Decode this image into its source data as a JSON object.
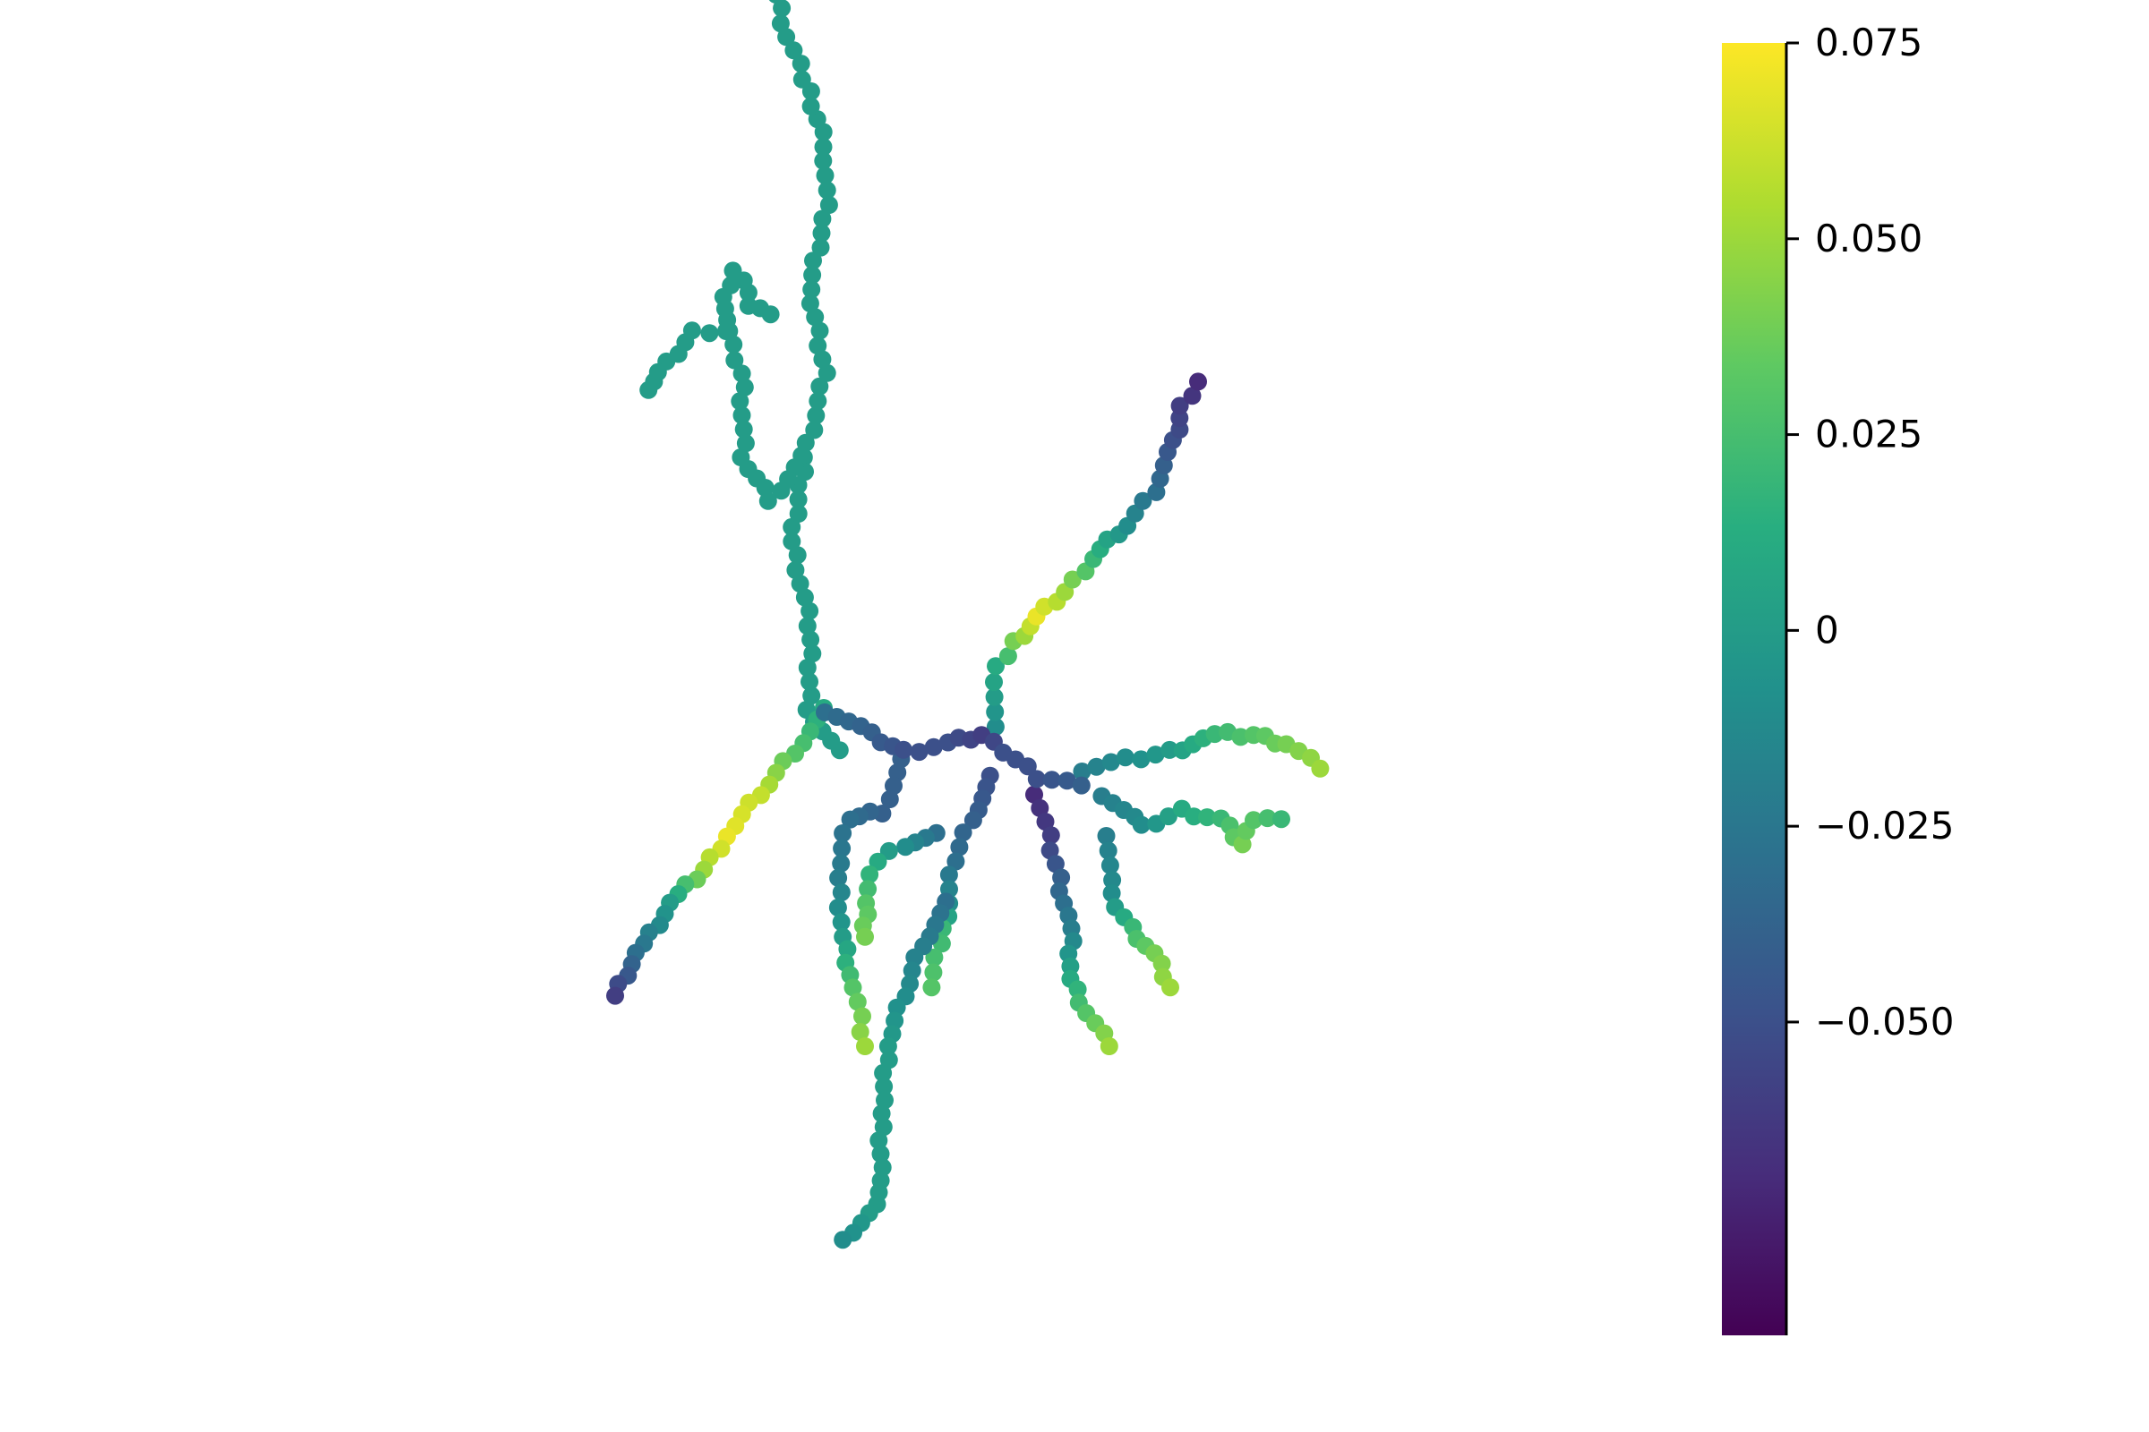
{
  "chart_data": {
    "type": "scatter",
    "description_of_marks": "points along branches colored by value",
    "colormap": "viridis",
    "colorbar": {
      "range": [
        -0.09,
        0.075
      ],
      "ticks": [
        0.075,
        0.05,
        0.025,
        0,
        -0.025,
        -0.05
      ],
      "tick_labels": [
        "0.075",
        "0.050",
        "0.025",
        "0",
        "−0.025",
        "−0.050"
      ]
    },
    "axes_visible": false,
    "grid": false,
    "branches": [
      {
        "name": "upper-left",
        "polyline": [
          [
            0.0,
            0.0
          ],
          [
            -0.05,
            0.05
          ],
          [
            -0.05,
            0.15
          ],
          [
            -0.08,
            0.25
          ],
          [
            -0.06,
            0.35
          ],
          [
            -0.02,
            0.45
          ],
          [
            -0.05,
            0.55
          ],
          [
            -0.02,
            0.65
          ],
          [
            -0.02,
            0.72
          ],
          [
            -0.06,
            0.8
          ],
          [
            -0.09,
            0.85
          ],
          [
            -0.11,
            0.9
          ]
        ],
        "values": [
          0.0,
          0.0,
          0.0,
          0.0,
          0.0,
          0.0,
          0.0,
          0.0,
          0.0,
          0.0,
          0.0,
          0.0
        ]
      },
      {
        "name": "upper-left-sub",
        "polyline": [
          [
            -0.06,
            0.35
          ],
          [
            -0.12,
            0.3
          ],
          [
            -0.17,
            0.35
          ],
          [
            -0.17,
            0.45
          ],
          [
            -0.2,
            0.5
          ],
          [
            -0.26,
            0.5
          ],
          [
            -0.32,
            0.45
          ],
          [
            -0.34,
            0.43
          ]
        ],
        "values": [
          0.0,
          0.0,
          0.0,
          0.0,
          0.0,
          0.0,
          0.0,
          0.0
        ]
      },
      {
        "name": "upper-left-hook",
        "polyline": [
          [
            -0.2,
            0.5
          ],
          [
            -0.2,
            0.54
          ],
          [
            -0.19,
            0.57
          ],
          [
            -0.17,
            0.56
          ],
          [
            -0.16,
            0.53
          ],
          [
            -0.12,
            0.52
          ]
        ],
        "values": [
          0.0,
          0.0,
          0.0,
          0.0,
          0.0,
          0.0
        ]
      },
      {
        "name": "left-lower",
        "polyline": [
          [
            -0.02,
            0.05
          ],
          [
            -0.08,
            0.0
          ],
          [
            -0.14,
            -0.05
          ],
          [
            -0.2,
            -0.1
          ],
          [
            -0.24,
            -0.14
          ],
          [
            -0.3,
            -0.18
          ],
          [
            -0.36,
            -0.24
          ],
          [
            -0.4,
            -0.29
          ]
        ],
        "values": [
          0.01,
          0.03,
          0.06,
          0.07,
          0.05,
          0.0,
          -0.03,
          -0.06
        ]
      },
      {
        "name": "upper-right",
        "polyline": [
          [
            0.28,
            0.03
          ],
          [
            0.29,
            0.1
          ],
          [
            0.32,
            0.13
          ],
          [
            0.36,
            0.16
          ],
          [
            0.41,
            0.19
          ],
          [
            0.46,
            0.23
          ],
          [
            0.52,
            0.27
          ],
          [
            0.57,
            0.31
          ],
          [
            0.61,
            0.37
          ],
          [
            0.62,
            0.41
          ],
          [
            0.65,
            0.44
          ]
        ],
        "values": [
          -0.01,
          0.01,
          0.04,
          0.07,
          0.05,
          0.02,
          -0.01,
          -0.03,
          -0.05,
          -0.06,
          -0.07
        ]
      },
      {
        "name": "right-upper",
        "polyline": [
          [
            0.44,
            -0.02
          ],
          [
            0.52,
            -0.01
          ],
          [
            0.6,
            0.0
          ],
          [
            0.68,
            0.02
          ],
          [
            0.75,
            0.02
          ],
          [
            0.81,
            0.01
          ],
          [
            0.87,
            -0.02
          ]
        ],
        "values": [
          -0.02,
          -0.01,
          0.0,
          0.02,
          0.03,
          0.04,
          0.05
        ]
      },
      {
        "name": "right-mid",
        "polyline": [
          [
            0.48,
            -0.05
          ],
          [
            0.55,
            -0.09
          ],
          [
            0.62,
            -0.07
          ],
          [
            0.69,
            -0.08
          ],
          [
            0.73,
            -0.11
          ],
          [
            0.75,
            -0.08
          ],
          [
            0.8,
            -0.08
          ]
        ],
        "values": [
          -0.02,
          -0.01,
          0.01,
          0.02,
          0.04,
          0.03,
          0.02
        ]
      },
      {
        "name": "right-lower",
        "polyline": [
          [
            0.49,
            -0.1
          ],
          [
            0.49,
            -0.17
          ],
          [
            0.53,
            -0.21
          ],
          [
            0.57,
            -0.24
          ],
          [
            0.6,
            -0.28
          ]
        ],
        "values": [
          -0.02,
          -0.01,
          0.02,
          0.04,
          0.05
        ]
      },
      {
        "name": "lower-right",
        "polyline": [
          [
            0.36,
            -0.05
          ],
          [
            0.38,
            -0.1
          ],
          [
            0.4,
            -0.15
          ],
          [
            0.42,
            -0.21
          ],
          [
            0.42,
            -0.27
          ],
          [
            0.45,
            -0.31
          ],
          [
            0.49,
            -0.35
          ]
        ],
        "values": [
          -0.07,
          -0.06,
          -0.04,
          -0.02,
          0.01,
          0.03,
          0.05
        ]
      },
      {
        "name": "lower-center",
        "polyline": [
          [
            0.28,
            -0.03
          ],
          [
            0.24,
            -0.08
          ],
          [
            0.21,
            -0.13
          ],
          [
            0.2,
            -0.18
          ],
          [
            0.19,
            -0.21
          ],
          [
            0.17,
            -0.28
          ]
        ],
        "values": [
          -0.05,
          -0.04,
          -0.03,
          -0.01,
          0.02,
          0.03
        ]
      },
      {
        "name": "lower-trunk",
        "polyline": [
          [
            0.2,
            -0.18
          ],
          [
            0.15,
            -0.23
          ],
          [
            0.12,
            -0.29
          ],
          [
            0.09,
            -0.35
          ],
          [
            0.08,
            -0.43
          ],
          [
            0.08,
            -0.51
          ],
          [
            0.06,
            -0.55
          ],
          [
            0.01,
            -0.58
          ]
        ],
        "values": [
          -0.03,
          -0.02,
          -0.01,
          0.0,
          0.0,
          0.0,
          0.0,
          -0.01
        ]
      },
      {
        "name": "lower-left",
        "polyline": [
          [
            0.12,
            -0.01
          ],
          [
            0.08,
            -0.07
          ],
          [
            0.02,
            -0.08
          ],
          [
            0.0,
            -0.15
          ],
          [
            0.01,
            -0.22
          ],
          [
            0.03,
            -0.28
          ],
          [
            0.05,
            -0.35
          ]
        ],
        "values": [
          -0.04,
          -0.04,
          -0.03,
          -0.02,
          0.0,
          0.03,
          0.05
        ]
      },
      {
        "name": "lower-left-inner",
        "polyline": [
          [
            0.18,
            -0.1
          ],
          [
            0.12,
            -0.11
          ],
          [
            0.07,
            -0.13
          ],
          [
            0.05,
            -0.18
          ],
          [
            0.05,
            -0.22
          ]
        ],
        "values": [
          -0.03,
          -0.01,
          0.01,
          0.03,
          0.04
        ]
      },
      {
        "name": "core",
        "polyline": [
          [
            -0.02,
            0.05
          ],
          [
            0.06,
            0.02
          ],
          [
            0.12,
            0.0
          ],
          [
            0.2,
            0.01
          ],
          [
            0.26,
            0.02
          ],
          [
            0.3,
            0.0
          ],
          [
            0.36,
            -0.03
          ],
          [
            0.44,
            -0.04
          ]
        ],
        "values": [
          -0.03,
          -0.04,
          -0.05,
          -0.05,
          -0.06,
          -0.05,
          -0.05,
          -0.04
        ]
      }
    ]
  }
}
